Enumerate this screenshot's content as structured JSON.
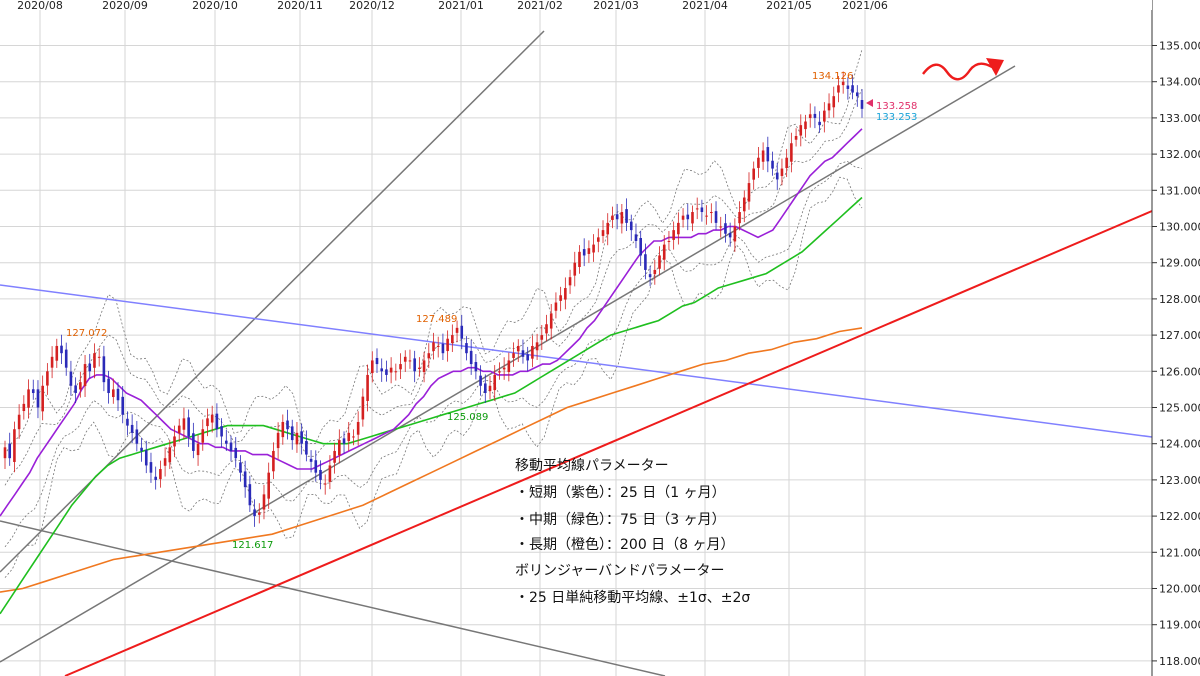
{
  "chart_data": {
    "type": "candlestick",
    "x_labels": [
      "2020/08",
      "2020/09",
      "2020/10",
      "2020/11",
      "2020/12",
      "2021/01",
      "2021/02",
      "2021/03",
      "2021/04",
      "2021/05",
      "2021/06"
    ],
    "y_ticks": [
      "135.000",
      "134.000",
      "133.000",
      "132.000",
      "131.000",
      "130.000",
      "129.000",
      "128.000",
      "127.000",
      "126.000",
      "125.000",
      "124.000",
      "123.000",
      "122.000",
      "121.000",
      "120.000",
      "119.000",
      "118.000"
    ],
    "ylim": [
      118.0,
      135.8
    ],
    "bull_color": "#d42020",
    "bear_color": "#2a2ab8",
    "closes": [
      123.9,
      123.6,
      124.4,
      124.8,
      125.1,
      125.5,
      125.4,
      125.0,
      125.6,
      126.0,
      126.4,
      126.7,
      126.5,
      126.1,
      125.6,
      125.4,
      125.7,
      126.2,
      126.0,
      126.5,
      126.4,
      125.7,
      125.4,
      125.5,
      125.2,
      124.8,
      124.5,
      124.3,
      124.0,
      123.8,
      123.4,
      123.2,
      123.0,
      123.3,
      123.6,
      123.9,
      124.2,
      124.5,
      124.7,
      124.2,
      123.8,
      124.0,
      124.4,
      124.7,
      124.8,
      124.4,
      124.2,
      124.0,
      123.8,
      123.6,
      123.2,
      122.8,
      122.3,
      122.0,
      122.1,
      122.6,
      123.2,
      123.8,
      124.3,
      124.6,
      124.4,
      124.1,
      124.3,
      124.0,
      123.7,
      123.5,
      123.2,
      123.0,
      122.9,
      123.4,
      123.8,
      124.1,
      124.0,
      124.3,
      124.2,
      124.6,
      125.3,
      125.9,
      126.3,
      126.2,
      126.0,
      125.9,
      126.1,
      126.0,
      126.2,
      126.4,
      126.3,
      126.0,
      126.1,
      126.3,
      126.5,
      126.8,
      126.7,
      126.5,
      126.9,
      127.0,
      127.2,
      126.9,
      126.5,
      126.2,
      126.0,
      125.6,
      125.4,
      125.6,
      125.9,
      126.0,
      126.1,
      126.3,
      126.5,
      126.7,
      126.4,
      126.3,
      126.7,
      126.8,
      127.0,
      127.3,
      127.6,
      127.9,
      128.1,
      128.3,
      128.6,
      129.0,
      129.3,
      129.2,
      129.4,
      129.5,
      129.7,
      129.9,
      130.1,
      130.3,
      130.2,
      130.4,
      130.1,
      129.9,
      129.6,
      129.2,
      128.8,
      128.6,
      128.8,
      129.2,
      129.5,
      129.6,
      129.9,
      130.1,
      130.3,
      130.2,
      130.4,
      130.5,
      130.4,
      130.3,
      130.4,
      130.1,
      130.0,
      129.8,
      129.7,
      130.0,
      130.4,
      130.8,
      131.2,
      131.6,
      131.9,
      132.1,
      131.8,
      131.6,
      131.3,
      131.6,
      131.9,
      132.3,
      132.5,
      132.8,
      132.9,
      133.1,
      133.0,
      132.8,
      133.2,
      133.4,
      133.6,
      133.9,
      134.0,
      133.8,
      133.7,
      133.6,
      133.25
    ],
    "ma_short_25": [
      122.0,
      122.3,
      122.6,
      122.9,
      123.2,
      123.6,
      123.9,
      124.2,
      124.5,
      124.8,
      125.1,
      125.5,
      125.8,
      125.9,
      125.9,
      125.8,
      125.6,
      125.4,
      125.3,
      125.2,
      125.0,
      124.8,
      124.6,
      124.4,
      124.3,
      124.2,
      124.1,
      124.0,
      124.0,
      123.9,
      123.9,
      123.8,
      123.8,
      123.8,
      123.7,
      123.7,
      123.7,
      123.6,
      123.5,
      123.4,
      123.3,
      123.3,
      123.3,
      123.4,
      123.5,
      123.6,
      123.7,
      123.8,
      123.9,
      124.0,
      124.1,
      124.2,
      124.3,
      124.4,
      124.6,
      124.8,
      125.1,
      125.3,
      125.6,
      125.8,
      125.9,
      126.0,
      126.0,
      126.1,
      126.1,
      126.0,
      126.0,
      125.9,
      125.9,
      125.9,
      126.0,
      126.0,
      126.1,
      126.2,
      126.2,
      126.3,
      126.5,
      126.7,
      126.9,
      127.2,
      127.4,
      127.7,
      128.0,
      128.3,
      128.6,
      128.9,
      129.2,
      129.4,
      129.6,
      129.6,
      129.7,
      129.7,
      129.7,
      129.7,
      129.8,
      129.8,
      129.9,
      129.9,
      130.0,
      130.0,
      129.9,
      129.8,
      129.7,
      129.8,
      129.9,
      130.2,
      130.5,
      130.8,
      131.1,
      131.4,
      131.6,
      131.8,
      131.9,
      132.1,
      132.3,
      132.5,
      132.7
    ],
    "ma_short_start": 0,
    "ma_mid_75": [
      119.3,
      119.8,
      120.3,
      120.8,
      121.3,
      121.8,
      122.3,
      122.7,
      123.1,
      123.4,
      123.6,
      123.7,
      123.8,
      123.9,
      124.0,
      124.1,
      124.2,
      124.3,
      124.4,
      124.5,
      124.5,
      124.5,
      124.5,
      124.4,
      124.3,
      124.2,
      124.1,
      124.0,
      124.0,
      124.0,
      124.1,
      124.2,
      124.3,
      124.4,
      124.5,
      124.6,
      124.7,
      124.8,
      124.9,
      125.0,
      125.1,
      125.2,
      125.3,
      125.4,
      125.6,
      125.8,
      126.0,
      126.2,
      126.4,
      126.6,
      126.8,
      127.0,
      127.1,
      127.2,
      127.3,
      127.4,
      127.6,
      127.8,
      127.9,
      128.1,
      128.3,
      128.4,
      128.5,
      128.6,
      128.7,
      128.9,
      129.1,
      129.3,
      129.6,
      129.9,
      130.2,
      130.5,
      130.8
    ],
    "ma_long_200": [
      119.9,
      120.0,
      120.2,
      120.4,
      120.6,
      120.8,
      120.9,
      121.0,
      121.1,
      121.2,
      121.3,
      121.4,
      121.5,
      121.7,
      121.9,
      122.1,
      122.3,
      122.6,
      122.9,
      123.2,
      123.5,
      123.8,
      124.1,
      124.4,
      124.7,
      125.0,
      125.2,
      125.4,
      125.6,
      125.8,
      126.0,
      126.2,
      126.3,
      126.5,
      126.6,
      126.8,
      126.9,
      127.1,
      127.2
    ],
    "bollinger": "±1σ, ±2σ",
    "trendlines": "gray, blue, red",
    "annotations": [
      {
        "text": "127.072",
        "color": "#e06000"
      },
      {
        "text": "127.489",
        "color": "#e06000"
      },
      {
        "text": "134.126",
        "color": "#e06000"
      },
      {
        "text": "121.617",
        "color": "#0a9a0a"
      },
      {
        "text": "125.089",
        "color": "#0a9a0a"
      },
      {
        "text": "133.258",
        "color": "#e0306a"
      },
      {
        "text": "133.253",
        "color": "#1aa3d8"
      }
    ],
    "legend_note": [
      "移動平均線パラメーター",
      "・短期（紫色）：25 日（1 ヶ月）",
      "・中期（緑色）：75 日（3 ヶ月）",
      "・長期（橙色）：200 日（8 ヶ月）",
      "ボリンジャーバンドパラメーター",
      "・25 日単純移動平均線、±1σ、±2σ"
    ]
  }
}
